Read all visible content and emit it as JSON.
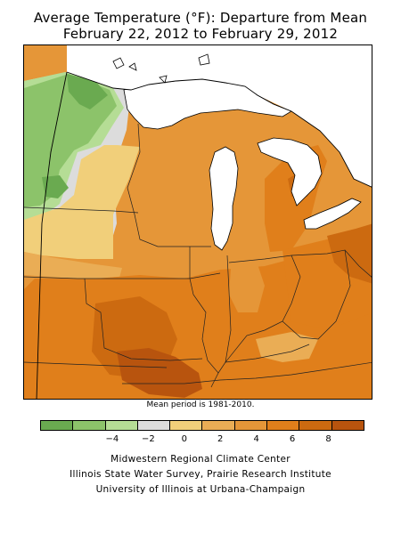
{
  "title": {
    "line1": "Average Temperature (°F): Departure from Mean",
    "line2": "February 22, 2012 to February 29, 2012"
  },
  "map": {
    "region": "Midwestern United States",
    "colors": {
      "cool_3": "#6aaa50",
      "cool_2": "#8cc36a",
      "cool_1": "#b5dd95",
      "neutral": "#dcdcdc",
      "warm_1": "#f1cf7a",
      "warm_2": "#eaad55",
      "warm_3": "#e59638",
      "warm_4": "#e07f1b",
      "warm_5": "#cc6a10",
      "warm_6": "#b8540e",
      "lake": "#ffffff"
    }
  },
  "note": "Mean period is 1981-2010.",
  "legend": {
    "colors": [
      "#6aaa50",
      "#8cc36a",
      "#b5dd95",
      "#dcdcdc",
      "#f1cf7a",
      "#eaad55",
      "#e59638",
      "#e07f1b",
      "#cc6a10",
      "#b8540e"
    ],
    "ticks": [
      "−4",
      "−2",
      "0",
      "2",
      "4",
      "6",
      "8"
    ],
    "tick_values": [
      -4,
      -2,
      0,
      2,
      4,
      6,
      8
    ],
    "min": -8,
    "max": 10
  },
  "credits": {
    "line1": "Midwestern Regional Climate Center",
    "line2": "Illinois State Water Survey, Prairie Research Institute",
    "line3": "University of Illinois at Urbana-Champaign"
  }
}
